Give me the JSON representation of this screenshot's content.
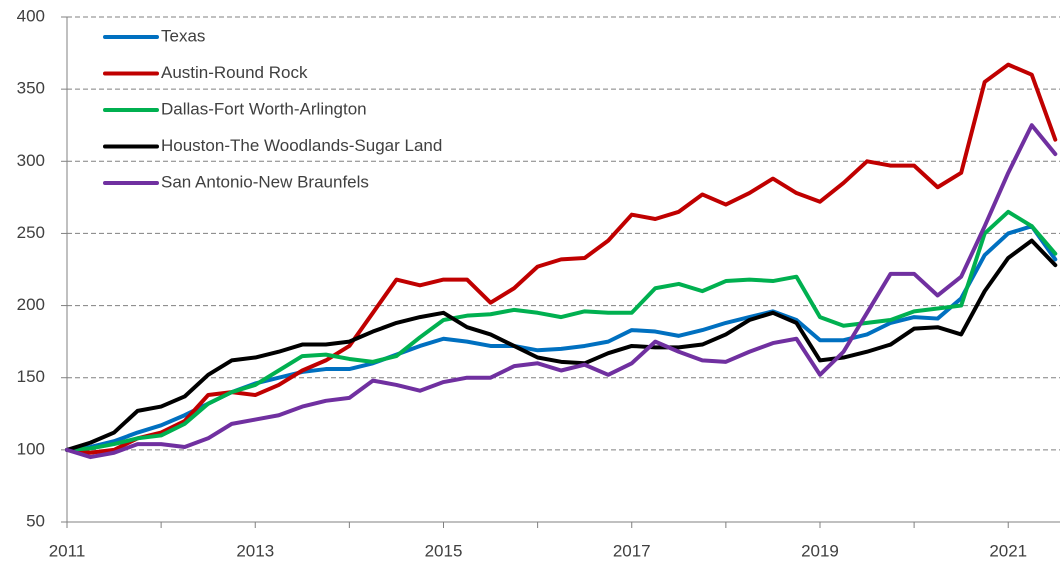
{
  "chart_data": {
    "type": "line",
    "x": [
      2011,
      2011.25,
      2011.5,
      2011.75,
      2012,
      2012.25,
      2012.5,
      2012.75,
      2013,
      2013.25,
      2013.5,
      2013.75,
      2014,
      2014.25,
      2014.5,
      2014.75,
      2015,
      2015.25,
      2015.5,
      2015.75,
      2016,
      2016.25,
      2016.5,
      2016.75,
      2017,
      2017.25,
      2017.5,
      2017.75,
      2018,
      2018.25,
      2018.5,
      2018.75,
      2019,
      2019.25,
      2019.5,
      2019.75,
      2020,
      2020.25,
      2020.5,
      2020.75,
      2021,
      2021.25,
      2021.5
    ],
    "series": [
      {
        "name": "Texas",
        "color": "#0070c0",
        "values": [
          100,
          102,
          106,
          112,
          117,
          124,
          132,
          140,
          146,
          150,
          154,
          156,
          156,
          160,
          166,
          172,
          177,
          175,
          172,
          172,
          169,
          170,
          172,
          175,
          183,
          182,
          179,
          183,
          188,
          192,
          196,
          190,
          176,
          176,
          180,
          188,
          192,
          191,
          205,
          235,
          250,
          255,
          232
        ]
      },
      {
        "name": "Austin-Round Rock",
        "color": "#c00000",
        "values": [
          100,
          98,
          100,
          108,
          112,
          120,
          138,
          140,
          138,
          145,
          155,
          162,
          172,
          195,
          218,
          214,
          218,
          218,
          202,
          212,
          227,
          232,
          233,
          245,
          263,
          260,
          265,
          277,
          270,
          278,
          288,
          278,
          272,
          285,
          300,
          297,
          297,
          282,
          292,
          355,
          367,
          360,
          315
        ]
      },
      {
        "name": "Dallas-Fort Worth-Arlington",
        "color": "#00b050",
        "values": [
          100,
          101,
          104,
          108,
          110,
          118,
          132,
          140,
          145,
          155,
          165,
          166,
          163,
          161,
          165,
          178,
          190,
          193,
          194,
          197,
          195,
          192,
          196,
          195,
          195,
          212,
          215,
          210,
          217,
          218,
          217,
          220,
          192,
          186,
          188,
          190,
          196,
          198,
          200,
          250,
          265,
          255,
          236
        ]
      },
      {
        "name": "Houston-The Woodlands-Sugar Land",
        "color": "#000000",
        "values": [
          100,
          105,
          112,
          127,
          130,
          137,
          152,
          162,
          164,
          168,
          173,
          173,
          175,
          182,
          188,
          192,
          195,
          185,
          180,
          172,
          164,
          161,
          160,
          167,
          172,
          171,
          171,
          173,
          180,
          190,
          195,
          188,
          162,
          164,
          168,
          173,
          184,
          185,
          180,
          210,
          233,
          245,
          228
        ]
      },
      {
        "name": "San Antonio-New Braunfels",
        "color": "#7030a0",
        "values": [
          100,
          95,
          98,
          104,
          104,
          102,
          108,
          118,
          121,
          124,
          130,
          134,
          136,
          148,
          145,
          141,
          147,
          150,
          150,
          158,
          160,
          155,
          159,
          152,
          160,
          175,
          168,
          162,
          161,
          168,
          174,
          177,
          152,
          168,
          195,
          222,
          222,
          207,
          220,
          255,
          292,
          325,
          305
        ]
      }
    ],
    "xlim": [
      2011,
      2021.55
    ],
    "xticks": [
      2011,
      2013,
      2015,
      2017,
      2019,
      2021
    ],
    "xminorticks": [
      2012,
      2014,
      2016,
      2018,
      2020
    ],
    "ylim": [
      50,
      400
    ],
    "yticks": [
      50,
      100,
      150,
      200,
      250,
      300,
      350,
      400
    ],
    "grid": true,
    "legend": "upper-left"
  }
}
